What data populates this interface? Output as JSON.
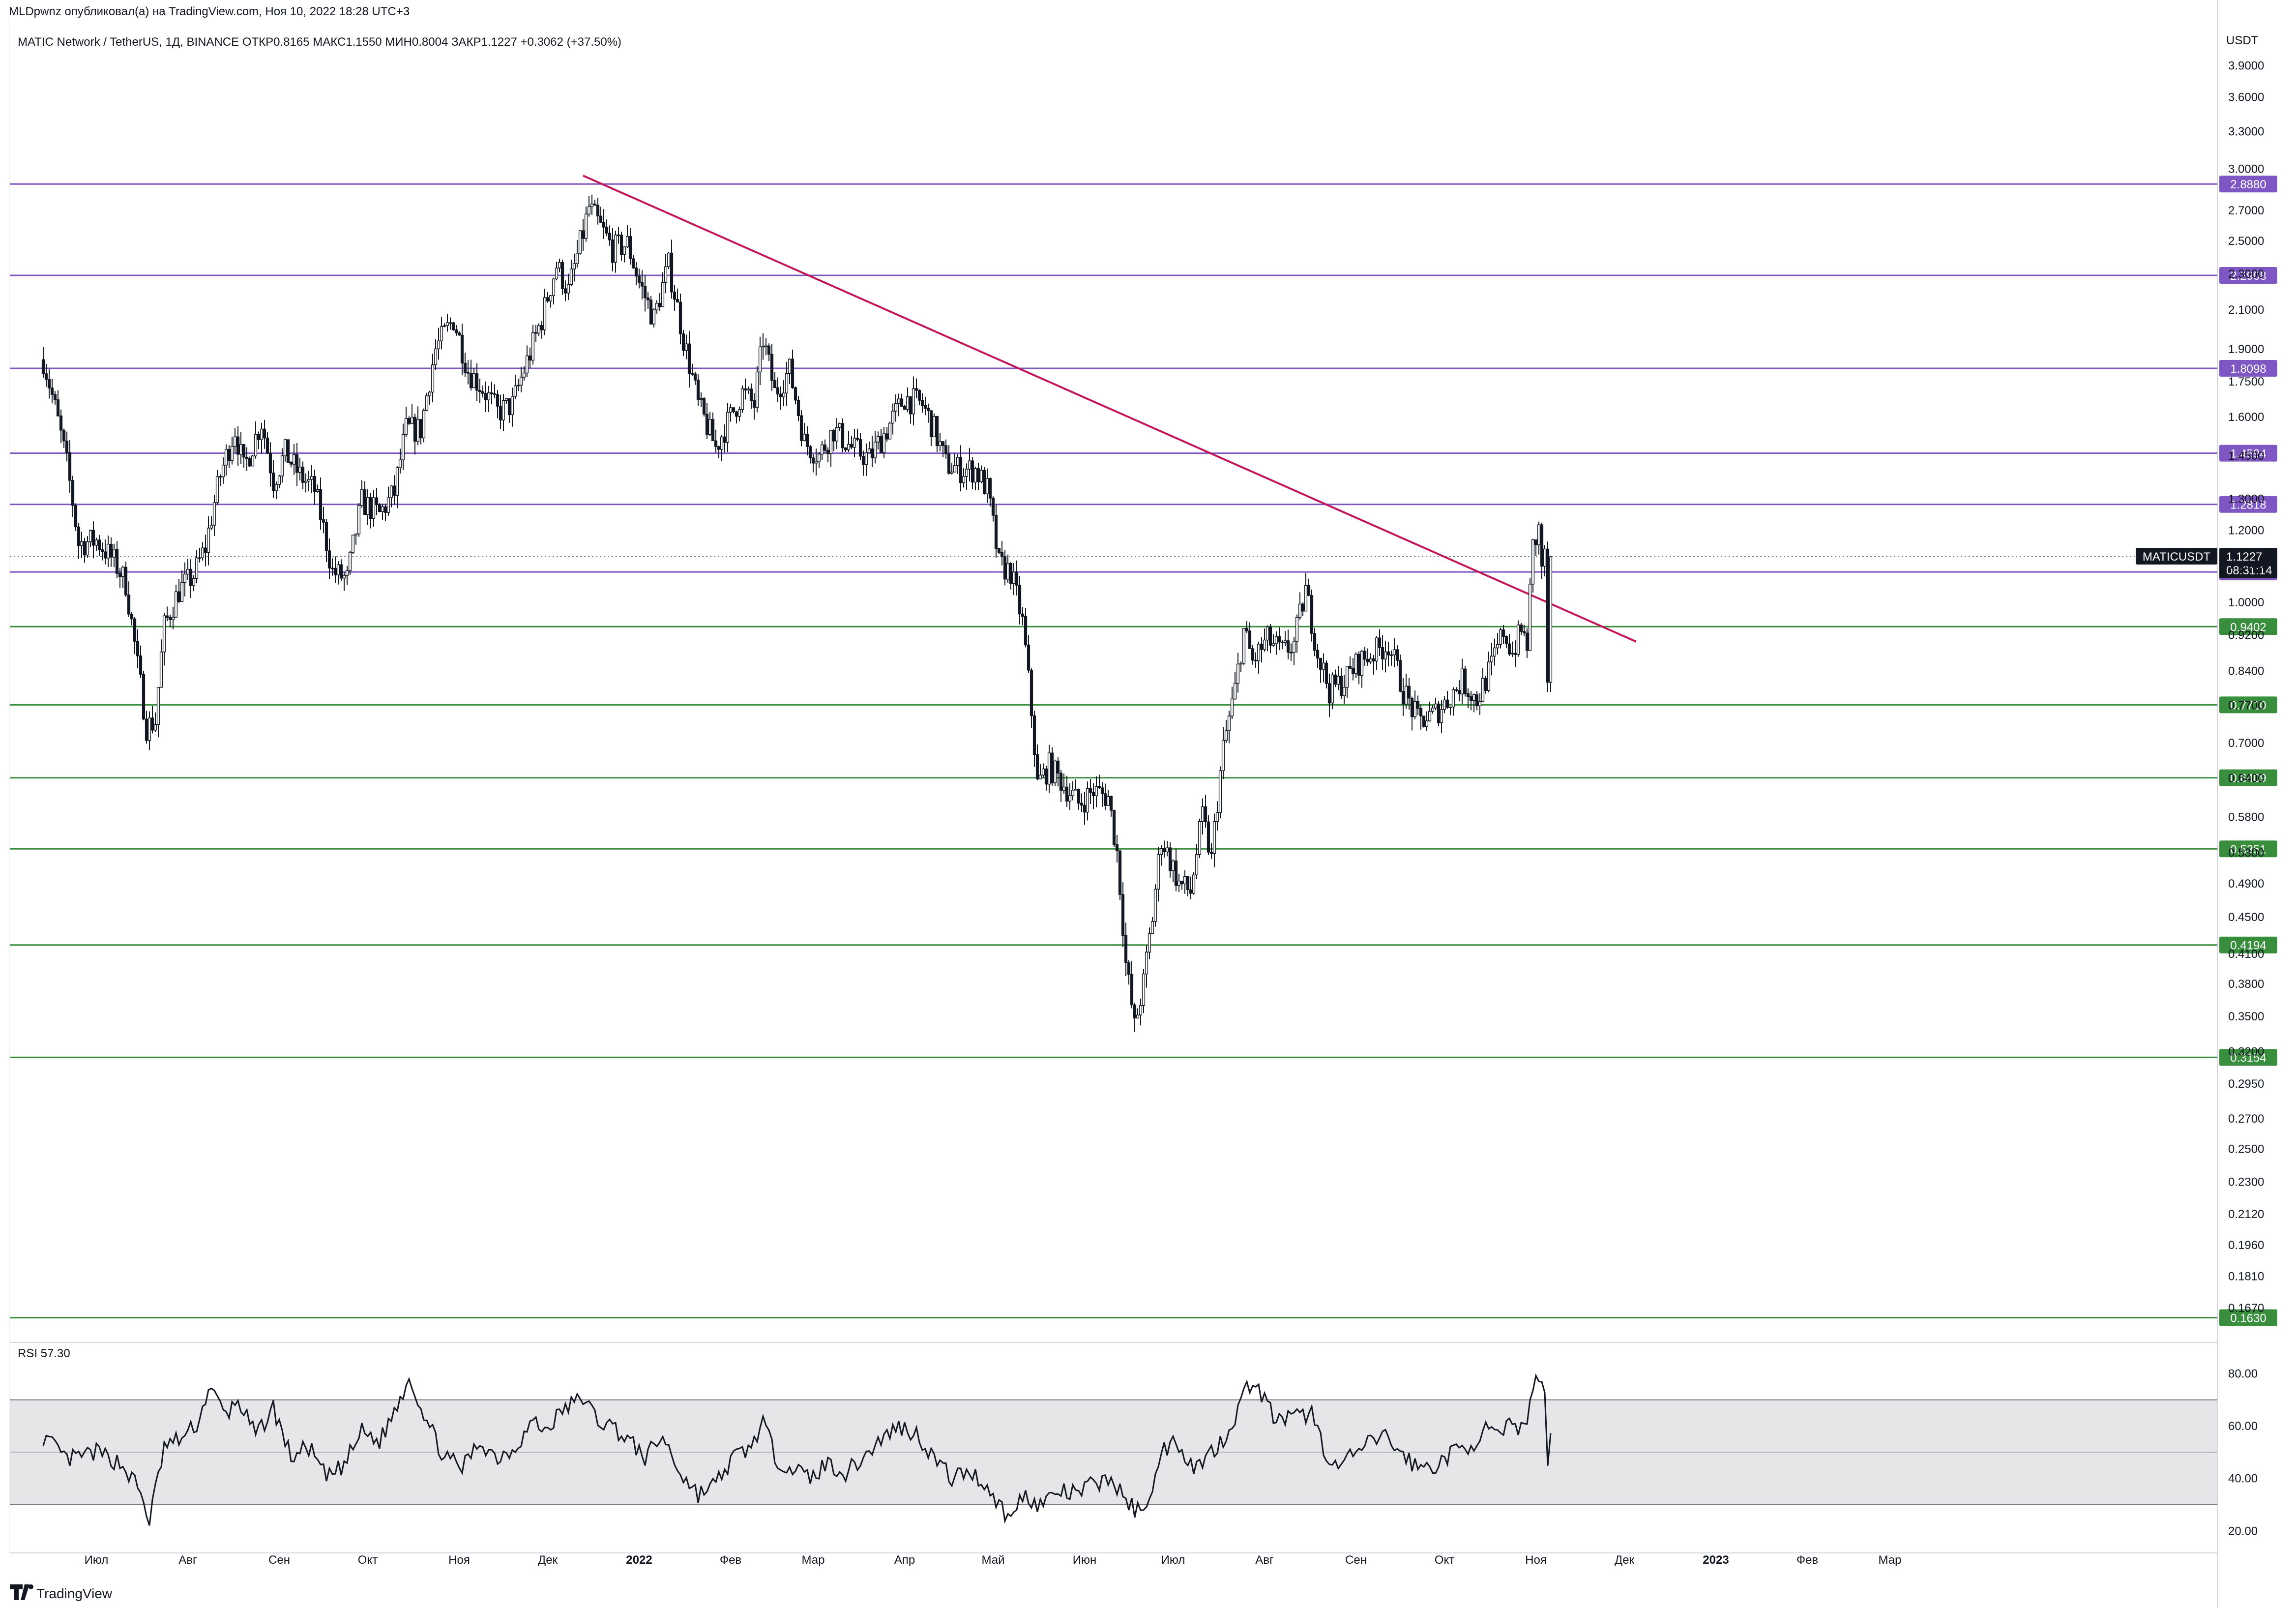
{
  "header": {
    "publisher_line": "MLDpwnz опубликовал(а) на TradingView.com, Ноя 10, 2022 18:28 UTC+3"
  },
  "legend": {
    "symbol": "MATIC Network / TetherUS, 1Д, BINANCE",
    "open_label": "ОТКР",
    "open": "0.8165",
    "high_label": "МАКС",
    "high": "1.1550",
    "low_label": "МИН",
    "low": "0.8004",
    "close_label": "ЗАКР",
    "close": "1.1227",
    "change": "+0.3062 (+37.50%)"
  },
  "axis": {
    "currency": "USDT",
    "price_ticks": [
      "3.9000",
      "3.6000",
      "3.3000",
      "3.0000",
      "2.7000",
      "2.5000",
      "2.3000",
      "2.1000",
      "1.9000",
      "1.7500",
      "1.6000",
      "1.4500",
      "1.3000",
      "1.2000",
      "1.1000",
      "1.0000",
      "0.9200",
      "0.8400",
      "0.7700",
      "0.7000",
      "0.6400",
      "0.5800",
      "0.5300",
      "0.4900",
      "0.4500",
      "0.4100",
      "0.3800",
      "0.3500",
      "0.3200",
      "0.2950",
      "0.2700",
      "0.2500",
      "0.2300",
      "0.2120",
      "0.1960",
      "0.1810",
      "0.1670"
    ],
    "time_ticks": [
      {
        "label": "Июл",
        "day": 0,
        "bold": false
      },
      {
        "label": "Авг",
        "day": 31,
        "bold": false
      },
      {
        "label": "Сен",
        "day": 62,
        "bold": false
      },
      {
        "label": "Окт",
        "day": 92,
        "bold": false
      },
      {
        "label": "Ноя",
        "day": 123,
        "bold": false
      },
      {
        "label": "Дек",
        "day": 153,
        "bold": false
      },
      {
        "label": "2022",
        "day": 184,
        "bold": true
      },
      {
        "label": "Фев",
        "day": 215,
        "bold": false
      },
      {
        "label": "Мар",
        "day": 243,
        "bold": false
      },
      {
        "label": "Апр",
        "day": 274,
        "bold": false
      },
      {
        "label": "Май",
        "day": 304,
        "bold": false
      },
      {
        "label": "Июн",
        "day": 335,
        "bold": false
      },
      {
        "label": "Июл",
        "day": 365,
        "bold": false
      },
      {
        "label": "Авг",
        "day": 396,
        "bold": false
      },
      {
        "label": "Сен",
        "day": 427,
        "bold": false
      },
      {
        "label": "Окт",
        "day": 457,
        "bold": false
      },
      {
        "label": "Ноя",
        "day": 488,
        "bold": false
      },
      {
        "label": "Дек",
        "day": 518,
        "bold": false
      },
      {
        "label": "2023",
        "day": 549,
        "bold": true
      },
      {
        "label": "Фев",
        "day": 580,
        "bold": false
      },
      {
        "label": "Мар",
        "day": 608,
        "bold": false
      }
    ]
  },
  "levels": [
    {
      "value": "2.8880",
      "price": 2.888,
      "color": "#7e57c2"
    },
    {
      "value": "2.2908",
      "price": 2.2908,
      "color": "#7e57c2"
    },
    {
      "value": "1.8098",
      "price": 1.8098,
      "color": "#7e57c2"
    },
    {
      "value": "1.4594",
      "price": 1.4594,
      "color": "#7e57c2"
    },
    {
      "value": "1.2818",
      "price": 1.2818,
      "color": "#7e57c2"
    },
    {
      "value": "1.0799",
      "price": 1.0799,
      "color": "#7e57c2"
    },
    {
      "value": "0.9402",
      "price": 0.9402,
      "color": "#388e3c"
    },
    {
      "value": "0.7710",
      "price": 0.771,
      "color": "#388e3c"
    },
    {
      "value": "0.6409",
      "price": 0.6409,
      "color": "#388e3c"
    },
    {
      "value": "0.5351",
      "price": 0.5351,
      "color": "#388e3c"
    },
    {
      "value": "0.4194",
      "price": 0.4194,
      "color": "#388e3c"
    },
    {
      "value": "0.3154",
      "price": 0.3154,
      "color": "#388e3c"
    },
    {
      "value": "0.1630",
      "price": 0.163,
      "color": "#388e3c"
    }
  ],
  "current_price": {
    "symbol": "MATICUSDT",
    "price": "1.1227",
    "countdown": "08:31:14",
    "value": 1.1227
  },
  "trendline": {
    "color": "#c2185b",
    "from": {
      "day": 165,
      "price": 2.95
    },
    "to": {
      "day": 522,
      "price": 0.905
    }
  },
  "rsi": {
    "label": "RSI",
    "value": "57.30",
    "ticks": [
      "80.00",
      "60.00",
      "40.00",
      "20.00"
    ],
    "band": [
      30,
      70
    ],
    "mid": 50
  },
  "colors": {
    "up": "#131722",
    "down": "#131722",
    "grid_band": "#e6e6e9",
    "axis_text": "#131722",
    "label_bg_dark": "#131722"
  },
  "branding": {
    "logo_text": "TradingView"
  },
  "chart_data": {
    "type": "candlestick",
    "title": "MATIC Network / TetherUS, 1Д, BINANCE",
    "x_unit": "days since 2021-07-01",
    "y_scale": "log",
    "ylim": [
      0.155,
      4.3
    ],
    "anchors": [
      {
        "day": -18,
        "close": 1.85
      },
      {
        "day": -10,
        "close": 1.42
      },
      {
        "day": -6,
        "close": 1.16
      },
      {
        "day": 0,
        "close": 1.17
      },
      {
        "day": 6,
        "close": 1.11
      },
      {
        "day": 10,
        "close": 1.05
      },
      {
        "day": 14,
        "close": 0.85
      },
      {
        "day": 17,
        "close": 0.73
      },
      {
        "day": 20,
        "close": 0.74
      },
      {
        "day": 23,
        "close": 0.94
      },
      {
        "day": 28,
        "close": 1.03
      },
      {
        "day": 33,
        "close": 1.07
      },
      {
        "day": 37,
        "close": 1.15
      },
      {
        "day": 42,
        "close": 1.38
      },
      {
        "day": 47,
        "close": 1.55
      },
      {
        "day": 50,
        "close": 1.4
      },
      {
        "day": 56,
        "close": 1.58
      },
      {
        "day": 60,
        "close": 1.36
      },
      {
        "day": 64,
        "close": 1.46
      },
      {
        "day": 69,
        "close": 1.38
      },
      {
        "day": 74,
        "close": 1.33
      },
      {
        "day": 80,
        "close": 1.08
      },
      {
        "day": 85,
        "close": 1.06
      },
      {
        "day": 90,
        "close": 1.29
      },
      {
        "day": 96,
        "close": 1.25
      },
      {
        "day": 101,
        "close": 1.32
      },
      {
        "day": 105,
        "close": 1.55
      },
      {
        "day": 110,
        "close": 1.55
      },
      {
        "day": 115,
        "close": 1.9
      },
      {
        "day": 121,
        "close": 2.05
      },
      {
        "day": 126,
        "close": 1.8
      },
      {
        "day": 131,
        "close": 1.72
      },
      {
        "day": 136,
        "close": 1.62
      },
      {
        "day": 141,
        "close": 1.65
      },
      {
        "day": 147,
        "close": 1.88
      },
      {
        "day": 151,
        "close": 2.05
      },
      {
        "day": 156,
        "close": 2.35
      },
      {
        "day": 160,
        "close": 2.2
      },
      {
        "day": 165,
        "close": 2.55
      },
      {
        "day": 167,
        "close": 2.72
      },
      {
        "day": 170,
        "close": 2.62
      },
      {
        "day": 175,
        "close": 2.45
      },
      {
        "day": 180,
        "close": 2.48
      },
      {
        "day": 184,
        "close": 2.25
      },
      {
        "day": 189,
        "close": 2.05
      },
      {
        "day": 194,
        "close": 2.35
      },
      {
        "day": 199,
        "close": 1.95
      },
      {
        "day": 204,
        "close": 1.65
      },
      {
        "day": 210,
        "close": 1.48
      },
      {
        "day": 215,
        "close": 1.6
      },
      {
        "day": 219,
        "close": 1.7
      },
      {
        "day": 223,
        "close": 1.65
      },
      {
        "day": 226,
        "close": 1.95
      },
      {
        "day": 230,
        "close": 1.7
      },
      {
        "day": 235,
        "close": 1.8
      },
      {
        "day": 240,
        "close": 1.5
      },
      {
        "day": 245,
        "close": 1.45
      },
      {
        "day": 250,
        "close": 1.55
      },
      {
        "day": 256,
        "close": 1.48
      },
      {
        "day": 262,
        "close": 1.44
      },
      {
        "day": 268,
        "close": 1.55
      },
      {
        "day": 274,
        "close": 1.68
      },
      {
        "day": 280,
        "close": 1.65
      },
      {
        "day": 284,
        "close": 1.55
      },
      {
        "day": 288,
        "close": 1.42
      },
      {
        "day": 293,
        "close": 1.4
      },
      {
        "day": 298,
        "close": 1.4
      },
      {
        "day": 302,
        "close": 1.33
      },
      {
        "day": 306,
        "close": 1.1
      },
      {
        "day": 310,
        "close": 1.08
      },
      {
        "day": 314,
        "close": 0.95
      },
      {
        "day": 316,
        "close": 0.82
      },
      {
        "day": 319,
        "close": 0.63
      },
      {
        "day": 323,
        "close": 0.66
      },
      {
        "day": 328,
        "close": 0.63
      },
      {
        "day": 333,
        "close": 0.6
      },
      {
        "day": 338,
        "close": 0.62
      },
      {
        "day": 343,
        "close": 0.61
      },
      {
        "day": 346,
        "close": 0.53
      },
      {
        "day": 349,
        "close": 0.4
      },
      {
        "day": 352,
        "close": 0.34
      },
      {
        "day": 355,
        "close": 0.38
      },
      {
        "day": 358,
        "close": 0.45
      },
      {
        "day": 361,
        "close": 0.55
      },
      {
        "day": 364,
        "close": 0.52
      },
      {
        "day": 367,
        "close": 0.49
      },
      {
        "day": 371,
        "close": 0.48
      },
      {
        "day": 375,
        "close": 0.58
      },
      {
        "day": 378,
        "close": 0.52
      },
      {
        "day": 382,
        "close": 0.69
      },
      {
        "day": 386,
        "close": 0.8
      },
      {
        "day": 389,
        "close": 0.93
      },
      {
        "day": 392,
        "close": 0.86
      },
      {
        "day": 397,
        "close": 0.91
      },
      {
        "day": 402,
        "close": 0.88
      },
      {
        "day": 406,
        "close": 0.9
      },
      {
        "day": 410,
        "close": 1.03
      },
      {
        "day": 414,
        "close": 0.88
      },
      {
        "day": 418,
        "close": 0.8
      },
      {
        "day": 423,
        "close": 0.82
      },
      {
        "day": 428,
        "close": 0.86
      },
      {
        "day": 433,
        "close": 0.88
      },
      {
        "day": 438,
        "close": 0.9
      },
      {
        "day": 443,
        "close": 0.8
      },
      {
        "day": 448,
        "close": 0.74
      },
      {
        "day": 453,
        "close": 0.75
      },
      {
        "day": 458,
        "close": 0.78
      },
      {
        "day": 463,
        "close": 0.82
      },
      {
        "day": 468,
        "close": 0.78
      },
      {
        "day": 473,
        "close": 0.85
      },
      {
        "day": 477,
        "close": 0.93
      },
      {
        "day": 480,
        "close": 0.88
      },
      {
        "day": 483,
        "close": 0.93
      },
      {
        "day": 485,
        "close": 0.9
      },
      {
        "day": 487,
        "close": 1.15
      },
      {
        "day": 489,
        "close": 1.2
      },
      {
        "day": 490,
        "close": 1.1
      },
      {
        "day": 491,
        "close": 1.12
      },
      {
        "day": 492,
        "close": 0.8165
      },
      {
        "day": 493,
        "close": 1.1227
      }
    ],
    "rsi_anchors": [
      {
        "day": -18,
        "v": 56
      },
      {
        "day": -10,
        "v": 47
      },
      {
        "day": 0,
        "v": 50
      },
      {
        "day": 8,
        "v": 46
      },
      {
        "day": 14,
        "v": 37
      },
      {
        "day": 18,
        "v": 24
      },
      {
        "day": 23,
        "v": 52
      },
      {
        "day": 30,
        "v": 56
      },
      {
        "day": 35,
        "v": 62
      },
      {
        "day": 38,
        "v": 75
      },
      {
        "day": 44,
        "v": 64
      },
      {
        "day": 48,
        "v": 70
      },
      {
        "day": 54,
        "v": 56
      },
      {
        "day": 60,
        "v": 67
      },
      {
        "day": 66,
        "v": 48
      },
      {
        "day": 72,
        "v": 52
      },
      {
        "day": 78,
        "v": 40
      },
      {
        "day": 84,
        "v": 45
      },
      {
        "day": 90,
        "v": 58
      },
      {
        "day": 96,
        "v": 54
      },
      {
        "day": 102,
        "v": 68
      },
      {
        "day": 106,
        "v": 79
      },
      {
        "day": 112,
        "v": 62
      },
      {
        "day": 118,
        "v": 48
      },
      {
        "day": 124,
        "v": 44
      },
      {
        "day": 130,
        "v": 54
      },
      {
        "day": 136,
        "v": 48
      },
      {
        "day": 142,
        "v": 52
      },
      {
        "day": 148,
        "v": 62
      },
      {
        "day": 152,
        "v": 58
      },
      {
        "day": 158,
        "v": 66
      },
      {
        "day": 165,
        "v": 71
      },
      {
        "day": 170,
        "v": 62
      },
      {
        "day": 175,
        "v": 60
      },
      {
        "day": 180,
        "v": 55
      },
      {
        "day": 186,
        "v": 48
      },
      {
        "day": 192,
        "v": 56
      },
      {
        "day": 198,
        "v": 42
      },
      {
        "day": 204,
        "v": 34
      },
      {
        "day": 210,
        "v": 38
      },
      {
        "day": 216,
        "v": 48
      },
      {
        "day": 222,
        "v": 52
      },
      {
        "day": 226,
        "v": 62
      },
      {
        "day": 230,
        "v": 48
      },
      {
        "day": 236,
        "v": 44
      },
      {
        "day": 242,
        "v": 40
      },
      {
        "day": 248,
        "v": 46
      },
      {
        "day": 254,
        "v": 42
      },
      {
        "day": 260,
        "v": 48
      },
      {
        "day": 266,
        "v": 55
      },
      {
        "day": 272,
        "v": 60
      },
      {
        "day": 278,
        "v": 57
      },
      {
        "day": 284,
        "v": 48
      },
      {
        "day": 290,
        "v": 40
      },
      {
        "day": 296,
        "v": 43
      },
      {
        "day": 302,
        "v": 37
      },
      {
        "day": 306,
        "v": 30
      },
      {
        "day": 310,
        "v": 24
      },
      {
        "day": 314,
        "v": 34
      },
      {
        "day": 320,
        "v": 30
      },
      {
        "day": 326,
        "v": 35
      },
      {
        "day": 332,
        "v": 34
      },
      {
        "day": 338,
        "v": 38
      },
      {
        "day": 344,
        "v": 40
      },
      {
        "day": 350,
        "v": 30
      },
      {
        "day": 354,
        "v": 27
      },
      {
        "day": 358,
        "v": 37
      },
      {
        "day": 362,
        "v": 51
      },
      {
        "day": 366,
        "v": 55
      },
      {
        "day": 372,
        "v": 44
      },
      {
        "day": 378,
        "v": 50
      },
      {
        "day": 384,
        "v": 58
      },
      {
        "day": 388,
        "v": 70
      },
      {
        "day": 392,
        "v": 78
      },
      {
        "day": 396,
        "v": 70
      },
      {
        "day": 400,
        "v": 62
      },
      {
        "day": 406,
        "v": 63
      },
      {
        "day": 412,
        "v": 65
      },
      {
        "day": 416,
        "v": 52
      },
      {
        "day": 420,
        "v": 44
      },
      {
        "day": 424,
        "v": 47
      },
      {
        "day": 430,
        "v": 52
      },
      {
        "day": 436,
        "v": 57
      },
      {
        "day": 442,
        "v": 50
      },
      {
        "day": 448,
        "v": 44
      },
      {
        "day": 454,
        "v": 45
      },
      {
        "day": 460,
        "v": 50
      },
      {
        "day": 466,
        "v": 53
      },
      {
        "day": 472,
        "v": 59
      },
      {
        "day": 476,
        "v": 55
      },
      {
        "day": 480,
        "v": 62
      },
      {
        "day": 484,
        "v": 58
      },
      {
        "day": 487,
        "v": 76
      },
      {
        "day": 489,
        "v": 80
      },
      {
        "day": 491,
        "v": 72
      },
      {
        "day": 492,
        "v": 44
      },
      {
        "day": 493,
        "v": 57.3
      }
    ]
  }
}
